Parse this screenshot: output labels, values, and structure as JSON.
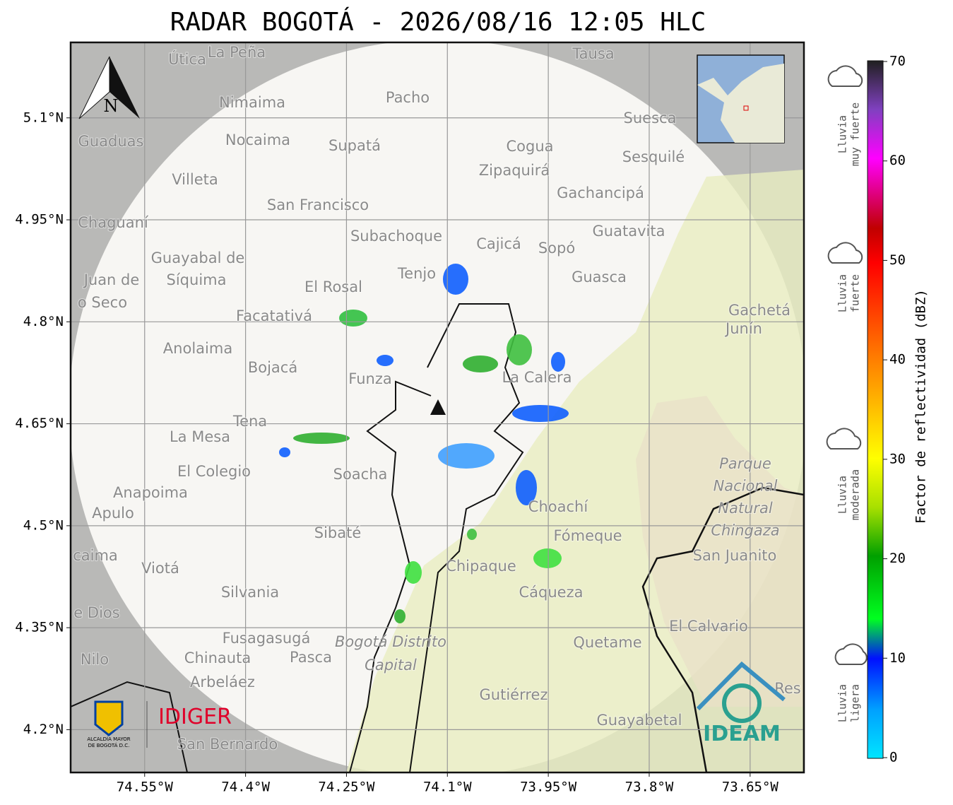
{
  "title": "RADAR BOGOTÁ - 2026/08/16 12:05 HLC",
  "map": {
    "xlim": [
      -74.66,
      -73.57
    ],
    "ylim": [
      4.137,
      5.211
    ],
    "xticks": [
      {
        "value": -74.55,
        "label": "74.55°W"
      },
      {
        "value": -74.4,
        "label": "74.4°W"
      },
      {
        "value": -74.25,
        "label": "74.25°W"
      },
      {
        "value": -74.1,
        "label": "74.1°W"
      },
      {
        "value": -73.95,
        "label": "73.95°W"
      },
      {
        "value": -73.8,
        "label": "73.8°W"
      },
      {
        "value": -73.65,
        "label": "73.65°W"
      }
    ],
    "yticks": [
      {
        "value": 5.1,
        "label": "5.1°N"
      },
      {
        "value": 4.95,
        "label": "4.95°N"
      },
      {
        "value": 4.8,
        "label": "4.8°N"
      },
      {
        "value": 4.65,
        "label": "4.65°N"
      },
      {
        "value": 4.5,
        "label": "4.5°N"
      },
      {
        "value": 4.35,
        "label": "4.35°N"
      },
      {
        "value": 4.2,
        "label": "4.2°N"
      }
    ],
    "north": "N",
    "places": [
      "Útica",
      "La Peña",
      "Tausa",
      "Pacho",
      "Nimaima",
      "Guaduas",
      "Nocaima",
      "Supatá",
      "Cogua",
      "Suesca",
      "Sesquilé",
      "Zipaquirá",
      "Villeta",
      "Gachancipá",
      "San Francisco",
      "Chaguaní",
      "Guatavita",
      "Subachoque",
      "Cajicá",
      "Sopó",
      "Guayabal de",
      "Síquima",
      "Juan de",
      "o Seco",
      "Tenjo",
      "El Rosal",
      "Guasca",
      "Facatativá",
      "Gachetá",
      "Junín",
      "Anolaima",
      "Bojacá",
      "Funza",
      "La Calera",
      "Tena",
      "La Mesa",
      "El Colegio",
      "Soacha",
      "Anapoima",
      "Apulo",
      "Choachí",
      "Fómeque",
      "Sibaté",
      "San Juanito",
      "caima",
      "Viotá",
      "Chipaque",
      "Silvania",
      "Cáqueza",
      "e Dios",
      "El Calvario",
      "Fusagasugá",
      "Quetame",
      "Nilo",
      "Chinauta",
      "Pasca",
      "Arbeláez",
      "Gutiérrez",
      "Res",
      "Guayabetal",
      "San Bernardo"
    ],
    "park_label": [
      "Parque",
      "Nacional",
      "Natural",
      "Chingaza"
    ],
    "district_label": [
      "Bogotá Distrito",
      "Capital"
    ]
  },
  "colorbar": {
    "label": "Factor de reflectividad (dBZ)",
    "lim": [
      0,
      70
    ],
    "ticks": [
      0,
      10,
      20,
      30,
      40,
      50,
      60,
      70
    ]
  },
  "rain_classes": [
    [
      "Lluvia",
      "muy fuerte"
    ],
    [
      "Lluvia",
      "fuerte"
    ],
    [
      "Lluvia",
      "moderada"
    ],
    [
      "Lluvia",
      "ligera"
    ]
  ],
  "logos": {
    "alcaldia": [
      "ALCALDÍA MAYOR",
      "DE BOGOTÁ D.C."
    ],
    "idiger": "IDIGER",
    "ideam": "IDEAM"
  }
}
